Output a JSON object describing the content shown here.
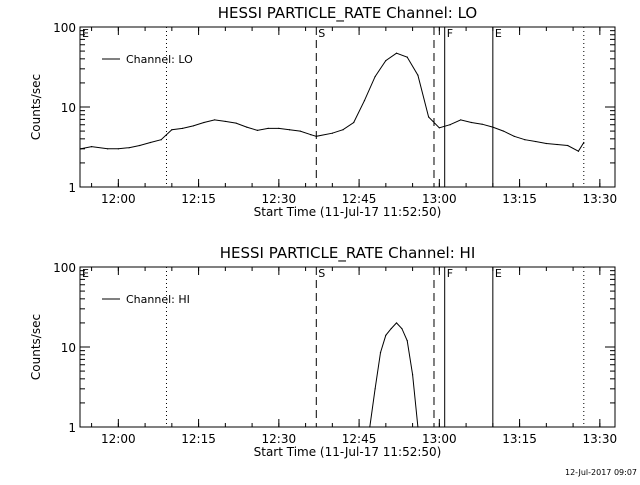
{
  "chart_data": [
    {
      "type": "line",
      "title": "HESSI PARTICLE_RATE Channel: LO",
      "xlabel": "Start Time (11-Jul-17 11:52:50)",
      "ylabel": "Counts/sec",
      "y_scale": "log",
      "ylim": [
        1,
        100
      ],
      "xlim": [
        "11:52:50",
        "13:32:50"
      ],
      "x_tick_labels": [
        "12:00",
        "12:15",
        "12:30",
        "12:45",
        "13:00",
        "13:15",
        "13:30"
      ],
      "y_tick_labels": [
        "1",
        "10",
        "100"
      ],
      "legend": {
        "position": "top-left",
        "entries": [
          "Channel: LO"
        ]
      },
      "series": [
        {
          "name": "Channel: LO",
          "x": [
            "11:53",
            "11:55",
            "11:58",
            "12:00",
            "12:02",
            "12:04",
            "12:06",
            "12:08",
            "12:10",
            "12:12",
            "12:14",
            "12:16",
            "12:18",
            "12:20",
            "12:22",
            "12:24",
            "12:26",
            "12:28",
            "12:30",
            "12:32",
            "12:34",
            "12:36",
            "12:37",
            "12:40",
            "12:42",
            "12:44",
            "12:46",
            "12:48",
            "12:50",
            "12:52",
            "12:54",
            "12:56",
            "12:58",
            "13:00",
            "13:02",
            "13:04",
            "13:06",
            "13:08",
            "13:10",
            "13:12",
            "13:14",
            "13:16",
            "13:18",
            "13:20",
            "13:22",
            "13:24",
            "13:26",
            "13:27"
          ],
          "y": [
            3.0,
            3.2,
            3.0,
            3.0,
            3.1,
            3.3,
            3.6,
            3.9,
            5.2,
            5.4,
            5.8,
            6.4,
            6.9,
            6.6,
            6.3,
            5.6,
            5.1,
            5.4,
            5.4,
            5.2,
            5.0,
            4.5,
            4.3,
            4.7,
            5.2,
            6.4,
            12,
            24,
            38,
            47,
            42,
            25,
            7.5,
            5.5,
            6.0,
            6.9,
            6.4,
            6.1,
            5.6,
            5.0,
            4.3,
            3.9,
            3.7,
            3.5,
            3.4,
            3.3,
            2.8,
            3.6
          ]
        }
      ],
      "markers": [
        {
          "label": "E",
          "time": "11:52:50",
          "style": "dotted"
        },
        {
          "label": "",
          "time": "12:09",
          "style": "dotted"
        },
        {
          "label": "S",
          "time": "12:37",
          "style": "dashed"
        },
        {
          "label": "",
          "time": "12:59",
          "style": "dashed"
        },
        {
          "label": "F",
          "time": "13:01",
          "style": "solid"
        },
        {
          "label": "E",
          "time": "13:10",
          "style": "solid"
        },
        {
          "label": "",
          "time": "13:27",
          "style": "dotted"
        }
      ]
    },
    {
      "type": "line",
      "title": "HESSI PARTICLE_RATE Channel: HI",
      "xlabel": "Start Time (11-Jul-17 11:52:50)",
      "ylabel": "Counts/sec",
      "y_scale": "log",
      "ylim": [
        1,
        100
      ],
      "xlim": [
        "11:52:50",
        "13:32:50"
      ],
      "x_tick_labels": [
        "12:00",
        "12:15",
        "12:30",
        "12:45",
        "13:00",
        "13:15",
        "13:30"
      ],
      "y_tick_labels": [
        "1",
        "10",
        "100"
      ],
      "legend": {
        "position": "top-left",
        "entries": [
          "Channel: HI"
        ]
      },
      "series": [
        {
          "name": "Channel: HI",
          "x": [
            "12:47",
            "12:48",
            "12:49",
            "12:50",
            "12:51",
            "12:52",
            "12:53",
            "12:54",
            "12:55",
            "12:56"
          ],
          "y": [
            1.0,
            3.0,
            8.5,
            14,
            17,
            20,
            17,
            12,
            4.5,
            1.0
          ]
        }
      ],
      "markers": [
        {
          "label": "E",
          "time": "11:52:50",
          "style": "dotted"
        },
        {
          "label": "",
          "time": "12:09",
          "style": "dotted"
        },
        {
          "label": "S",
          "time": "12:37",
          "style": "dashed"
        },
        {
          "label": "",
          "time": "12:59",
          "style": "dashed"
        },
        {
          "label": "F",
          "time": "13:01",
          "style": "solid"
        },
        {
          "label": "E",
          "time": "13:10",
          "style": "solid"
        },
        {
          "label": "",
          "time": "13:27",
          "style": "dotted"
        }
      ]
    }
  ],
  "footer": {
    "timestamp": "12-Jul-2017 09:07"
  }
}
